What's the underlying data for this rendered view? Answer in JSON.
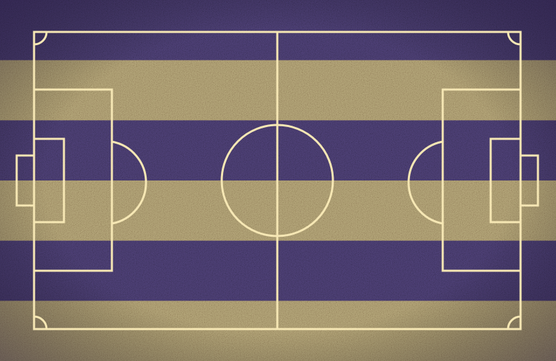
{
  "scene": {
    "subject": "soccer-pitch-top-view",
    "orientation": "horizontal",
    "stripe_count": 6
  },
  "colors": {
    "grass_dark": "#3f3460",
    "grass_light": "#9c8a62",
    "grass_highlight": "#d8c48e",
    "line": "#f6e7b4"
  }
}
